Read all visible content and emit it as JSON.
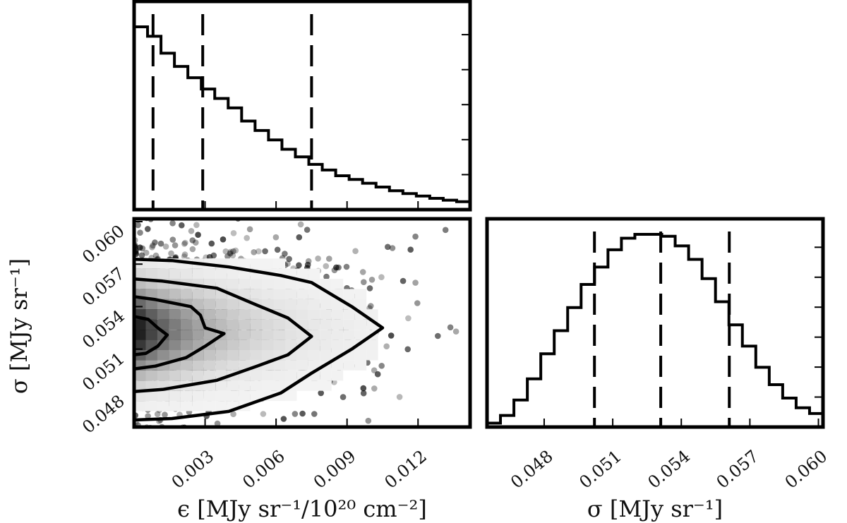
{
  "chart_data": [
    {
      "panel": "eps-marginal",
      "type": "histogram",
      "x_range": [
        0,
        0.0142
      ],
      "bins": 25,
      "y_range": [
        0,
        1.0
      ],
      "values": [
        0.97,
        0.92,
        0.83,
        0.76,
        0.7,
        0.64,
        0.59,
        0.54,
        0.47,
        0.42,
        0.37,
        0.32,
        0.28,
        0.24,
        0.21,
        0.18,
        0.16,
        0.14,
        0.12,
        0.1,
        0.085,
        0.072,
        0.06,
        0.05,
        0.042
      ],
      "quantile_lines": [
        0.0008,
        0.0029,
        0.0075
      ],
      "ytick_count": 5,
      "show_tick_labels": false
    },
    {
      "panel": "joint",
      "type": "scatter-density",
      "x_range": [
        0,
        0.0142
      ],
      "y_range": [
        0.0455,
        0.0602
      ],
      "xticks": [
        0.003,
        0.006,
        0.009,
        0.012
      ],
      "xtick_labels": [
        "0.003",
        "0.006",
        "0.009",
        "0.012"
      ],
      "yticks": [
        0.048,
        0.051,
        0.054,
        0.057,
        0.06
      ],
      "ytick_labels": [
        "0.048",
        "0.051",
        "0.054",
        "0.057",
        "0.060"
      ],
      "xlabel": "ϵ [MJy sr⁻¹/10²⁰ cm⁻²]",
      "ylabel": "σ [MJy sr⁻¹]",
      "contours": [
        {
          "level": "outer",
          "x": [
            0,
            0.0016,
            0.004,
            0.0062,
            0.0075,
            0.0092,
            0.0105,
            0.0092,
            0.0075,
            0.0062,
            0.004,
            0.0016,
            0
          ],
          "y": [
            0.05735,
            0.05725,
            0.0568,
            0.0562,
            0.0557,
            0.054,
            0.0525,
            0.051,
            0.0493,
            0.0479,
            0.0466,
            0.0461,
            0.046
          ]
        },
        {
          "level": "middle",
          "x": [
            0,
            0.0012,
            0.0035,
            0.0052,
            0.0065,
            0.0075,
            0.0065,
            0.0052,
            0.0035,
            0.0012,
            0
          ],
          "y": [
            0.05595,
            0.0558,
            0.0553,
            0.0541,
            0.0532,
            0.0519,
            0.0506,
            0.0498,
            0.0488,
            0.04815,
            0.048
          ]
        },
        {
          "level": "inner",
          "x": [
            0,
            0.0009,
            0.0024,
            0.0028,
            0.003,
            0.0038,
            0.003,
            0.0022,
            0.0009,
            0
          ],
          "y": [
            0.0547,
            0.0545,
            0.054,
            0.0534,
            0.0525,
            0.0521,
            0.0512,
            0.0504,
            0.0498,
            0.0496
          ]
        },
        {
          "level": "core",
          "x": [
            0,
            0.0006,
            0.001,
            0.0014,
            0.001,
            0.0005,
            0
          ],
          "y": [
            0.0533,
            0.0531,
            0.0525,
            0.052,
            0.0512,
            0.0507,
            0.0506
          ]
        }
      ]
    },
    {
      "panel": "sigma-marginal",
      "type": "histogram",
      "x_range": [
        0.0455,
        0.0602
      ],
      "xticks": [
        0.048,
        0.051,
        0.054,
        0.057,
        0.06
      ],
      "xtick_labels": [
        "0.048",
        "0.051",
        "0.054",
        "0.057",
        "0.060"
      ],
      "xlabel": "σ [MJy sr⁻¹]",
      "bins": 25,
      "y_range": [
        0,
        1.0
      ],
      "values": [
        0.02,
        0.06,
        0.14,
        0.25,
        0.38,
        0.5,
        0.62,
        0.74,
        0.83,
        0.92,
        0.98,
        1.0,
        1.0,
        0.99,
        0.94,
        0.87,
        0.77,
        0.65,
        0.53,
        0.42,
        0.31,
        0.22,
        0.15,
        0.1,
        0.07
      ],
      "quantile_lines": [
        0.0502,
        0.0531,
        0.0561
      ],
      "ytick_count": 6
    }
  ]
}
